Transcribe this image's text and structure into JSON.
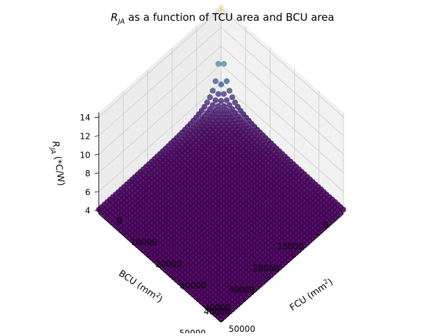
{
  "chart_data": {
    "type": "scatter",
    "projection": "3d",
    "title_prefix": "R",
    "title_sub": "JA",
    "title_suffix": " as a function of TCU area and BCU area",
    "xlabel_prefix": "FCU (mm",
    "xlabel_sup": "2",
    "xlabel_suffix": ")",
    "ylabel_prefix": "BCU (mm",
    "ylabel_sup": "2",
    "ylabel_suffix": ")",
    "zlabel_prefix": "R",
    "zlabel_sub": "JA",
    "zlabel_suffix": " (*C/W)",
    "x_ticks": [
      "0",
      "10000",
      "20000",
      "30000",
      "40000",
      "50000"
    ],
    "x_tick_values": [
      0,
      10000,
      20000,
      30000,
      40000,
      50000
    ],
    "y_ticks": [
      "0",
      "10000",
      "20000",
      "30000",
      "40000",
      "50000"
    ],
    "y_tick_values": [
      0,
      10000,
      20000,
      30000,
      40000,
      50000
    ],
    "z_ticks": [
      "4",
      "6",
      "8",
      "10",
      "12",
      "14"
    ],
    "z_tick_values": [
      4,
      6,
      8,
      10,
      12,
      14
    ],
    "xlim": [
      0,
      50000
    ],
    "ylim": [
      0,
      50000
    ],
    "zlim": [
      3.6,
      14.5
    ],
    "grid": true,
    "colormap": "viridis",
    "colormap_stops": [
      "#440154",
      "#482878",
      "#3e4989",
      "#31688e",
      "#26828e",
      "#1f9e89",
      "#35b779",
      "#6ece58",
      "#b5de2b",
      "#fde725"
    ],
    "surface": {
      "description_free": "",
      "x_min": 100,
      "x_max": 50000,
      "y_min": 100,
      "y_max": 50000,
      "z_min": 3.9,
      "z_max": 14.0,
      "z_at_corner_0_0": 14.0,
      "z_at_corner_50000_50000": 3.9
    }
  }
}
